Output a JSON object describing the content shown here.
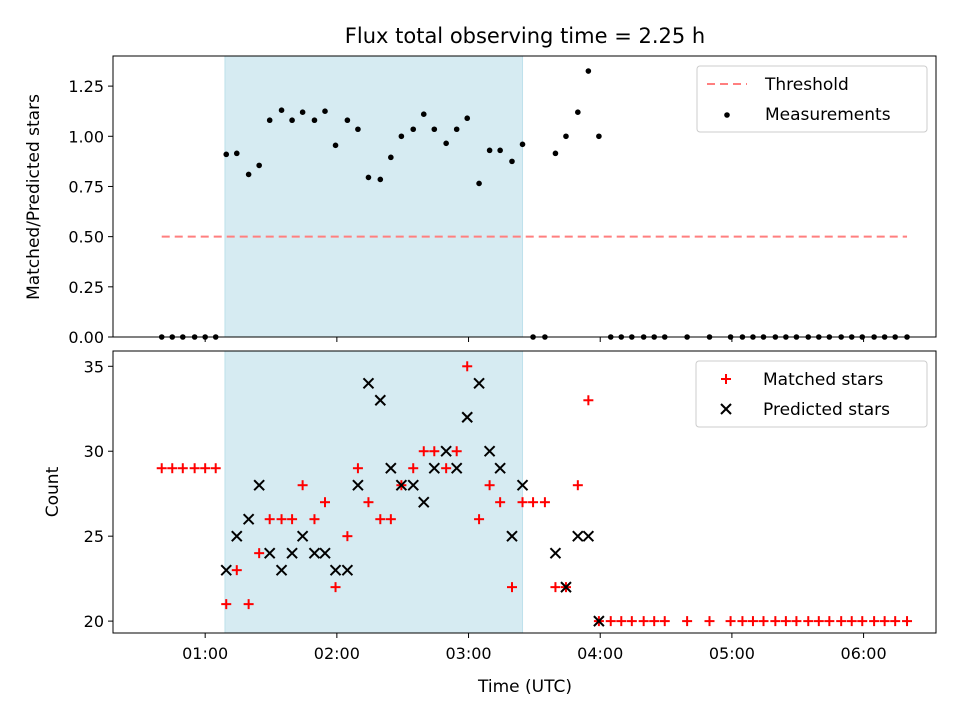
{
  "figure": {
    "title": "Flux total observing time = 2.25 h",
    "xlabel": "Time (UTC)"
  },
  "chart_data": [
    {
      "type": "scatter",
      "ylabel": "Matched/Predicted stars",
      "ylim": [
        0,
        1.4
      ],
      "yticks": [
        "0.00",
        "0.25",
        "0.50",
        "0.75",
        "1.00",
        "1.25"
      ],
      "xlim_hours": [
        0.3,
        6.55
      ],
      "xticks": [
        "01:00",
        "02:00",
        "03:00",
        "04:00",
        "05:00",
        "06:00"
      ],
      "shaded_interval_hours": [
        1.15,
        3.41
      ],
      "legend_position": "top-right",
      "threshold": {
        "name": "Threshold",
        "value": 0.5,
        "x_range_hours": [
          0.67,
          6.33
        ],
        "color": "#ff7f7f"
      },
      "measurements": {
        "name": "Measurements",
        "color": "#000000",
        "points": [
          [
            0.67,
            0
          ],
          [
            0.75,
            0
          ],
          [
            0.83,
            0
          ],
          [
            0.92,
            0
          ],
          [
            1.0,
            0
          ],
          [
            1.08,
            0
          ],
          [
            1.16,
            0.91
          ],
          [
            1.24,
            0.915
          ],
          [
            1.33,
            0.81
          ],
          [
            1.41,
            0.855
          ],
          [
            1.49,
            1.08
          ],
          [
            1.58,
            1.13
          ],
          [
            1.66,
            1.08
          ],
          [
            1.74,
            1.12
          ],
          [
            1.83,
            1.08
          ],
          [
            1.91,
            1.125
          ],
          [
            1.99,
            0.955
          ],
          [
            2.08,
            1.08
          ],
          [
            2.16,
            1.035
          ],
          [
            2.24,
            0.795
          ],
          [
            2.33,
            0.785
          ],
          [
            2.41,
            0.895
          ],
          [
            2.49,
            1.0
          ],
          [
            2.58,
            1.035
          ],
          [
            2.66,
            1.11
          ],
          [
            2.74,
            1.035
          ],
          [
            2.83,
            0.965
          ],
          [
            2.91,
            1.035
          ],
          [
            2.99,
            1.09
          ],
          [
            3.08,
            0.765
          ],
          [
            3.16,
            0.93
          ],
          [
            3.24,
            0.93
          ],
          [
            3.33,
            0.875
          ],
          [
            3.41,
            0.96
          ],
          [
            3.49,
            0
          ],
          [
            3.58,
            0
          ],
          [
            3.66,
            0.915
          ],
          [
            3.74,
            1.0
          ],
          [
            3.83,
            1.12
          ],
          [
            3.91,
            1.325
          ],
          [
            3.99,
            1.0
          ],
          [
            4.08,
            0
          ],
          [
            4.16,
            0
          ],
          [
            4.24,
            0
          ],
          [
            4.33,
            0
          ],
          [
            4.41,
            0
          ],
          [
            4.49,
            0
          ],
          [
            4.66,
            0
          ],
          [
            4.83,
            0
          ],
          [
            4.99,
            0
          ],
          [
            5.08,
            0
          ],
          [
            5.16,
            0
          ],
          [
            5.24,
            0
          ],
          [
            5.33,
            0
          ],
          [
            5.41,
            0
          ],
          [
            5.49,
            0
          ],
          [
            5.58,
            0
          ],
          [
            5.66,
            0
          ],
          [
            5.74,
            0
          ],
          [
            5.83,
            0
          ],
          [
            5.91,
            0
          ],
          [
            5.99,
            0
          ],
          [
            6.08,
            0
          ],
          [
            6.16,
            0
          ],
          [
            6.24,
            0
          ],
          [
            6.33,
            0
          ]
        ]
      }
    },
    {
      "type": "scatter",
      "ylabel": "Count",
      "ylim": [
        19.3,
        35.9
      ],
      "yticks": [
        "20",
        "25",
        "30",
        "35"
      ],
      "xlim_hours": [
        0.3,
        6.55
      ],
      "xticks": [
        "01:00",
        "02:00",
        "03:00",
        "04:00",
        "05:00",
        "06:00"
      ],
      "shaded_interval_hours": [
        1.15,
        3.41
      ],
      "legend_position": "top-right",
      "series": [
        {
          "name": "Matched stars",
          "marker": "plus",
          "color": "#ff0000",
          "points": [
            [
              0.67,
              29
            ],
            [
              0.75,
              29
            ],
            [
              0.83,
              29
            ],
            [
              0.92,
              29
            ],
            [
              1.0,
              29
            ],
            [
              1.08,
              29
            ],
            [
              1.16,
              21
            ],
            [
              1.24,
              23
            ],
            [
              1.33,
              21
            ],
            [
              1.41,
              24
            ],
            [
              1.49,
              26
            ],
            [
              1.58,
              26
            ],
            [
              1.66,
              26
            ],
            [
              1.74,
              28
            ],
            [
              1.83,
              26
            ],
            [
              1.91,
              27
            ],
            [
              1.99,
              22
            ],
            [
              2.08,
              25
            ],
            [
              2.16,
              29
            ],
            [
              2.24,
              27
            ],
            [
              2.33,
              26
            ],
            [
              2.41,
              26
            ],
            [
              2.49,
              28
            ],
            [
              2.58,
              29
            ],
            [
              2.66,
              30
            ],
            [
              2.74,
              30
            ],
            [
              2.83,
              29
            ],
            [
              2.91,
              30
            ],
            [
              2.99,
              35
            ],
            [
              3.08,
              26
            ],
            [
              3.16,
              28
            ],
            [
              3.24,
              27
            ],
            [
              3.33,
              22
            ],
            [
              3.41,
              27
            ],
            [
              3.49,
              27
            ],
            [
              3.58,
              27
            ],
            [
              3.66,
              22
            ],
            [
              3.74,
              22
            ],
            [
              3.83,
              28
            ],
            [
              3.91,
              33
            ],
            [
              3.99,
              20
            ],
            [
              4.08,
              20
            ],
            [
              4.16,
              20
            ],
            [
              4.24,
              20
            ],
            [
              4.33,
              20
            ],
            [
              4.41,
              20
            ],
            [
              4.49,
              20
            ],
            [
              4.66,
              20
            ],
            [
              4.83,
              20
            ],
            [
              4.99,
              20
            ],
            [
              5.08,
              20
            ],
            [
              5.16,
              20
            ],
            [
              5.24,
              20
            ],
            [
              5.33,
              20
            ],
            [
              5.41,
              20
            ],
            [
              5.49,
              20
            ],
            [
              5.58,
              20
            ],
            [
              5.66,
              20
            ],
            [
              5.74,
              20
            ],
            [
              5.83,
              20
            ],
            [
              5.91,
              20
            ],
            [
              5.99,
              20
            ],
            [
              6.08,
              20
            ],
            [
              6.16,
              20
            ],
            [
              6.24,
              20
            ],
            [
              6.33,
              20
            ]
          ]
        },
        {
          "name": "Predicted stars",
          "marker": "x",
          "color": "#000000",
          "points": [
            [
              1.16,
              23
            ],
            [
              1.24,
              25
            ],
            [
              1.33,
              26
            ],
            [
              1.41,
              28
            ],
            [
              1.49,
              24
            ],
            [
              1.58,
              23
            ],
            [
              1.66,
              24
            ],
            [
              1.74,
              25
            ],
            [
              1.83,
              24
            ],
            [
              1.91,
              24
            ],
            [
              1.99,
              23
            ],
            [
              2.08,
              23
            ],
            [
              2.16,
              28
            ],
            [
              2.24,
              34
            ],
            [
              2.33,
              33
            ],
            [
              2.41,
              29
            ],
            [
              2.49,
              28
            ],
            [
              2.58,
              28
            ],
            [
              2.66,
              27
            ],
            [
              2.74,
              29
            ],
            [
              2.83,
              30
            ],
            [
              2.91,
              29
            ],
            [
              2.99,
              32
            ],
            [
              3.08,
              34
            ],
            [
              3.16,
              30
            ],
            [
              3.24,
              29
            ],
            [
              3.33,
              25
            ],
            [
              3.41,
              28
            ],
            [
              3.66,
              24
            ],
            [
              3.74,
              22
            ],
            [
              3.83,
              25
            ],
            [
              3.91,
              25
            ],
            [
              3.99,
              20
            ]
          ]
        }
      ]
    }
  ]
}
